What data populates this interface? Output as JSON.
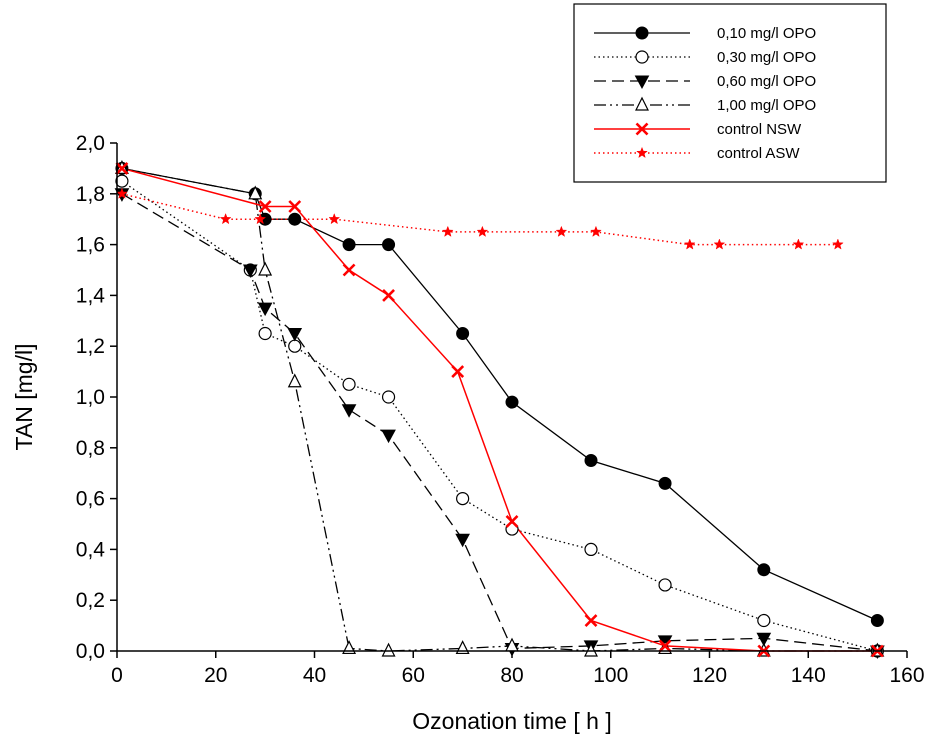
{
  "chart_data": {
    "type": "line",
    "title": "",
    "xlabel": "Ozonation time [ h ]",
    "ylabel": "TAN [mg/l]",
    "xlim": [
      0,
      160
    ],
    "ylim": [
      0,
      2.0
    ],
    "xticks": [
      0,
      20,
      40,
      60,
      80,
      100,
      120,
      140,
      160
    ],
    "xtick_labels": [
      "0",
      "20",
      "40",
      "60",
      "80",
      "100",
      "120",
      "140",
      "160"
    ],
    "yticks": [
      0,
      0.2,
      0.4,
      0.6,
      0.8,
      1.0,
      1.2,
      1.4,
      1.6,
      1.8,
      2.0
    ],
    "ytick_labels": [
      "0,0",
      "0,2",
      "0,4",
      "0,6",
      "0,8",
      "1,0",
      "1,2",
      "1,4",
      "1,6",
      "1,8",
      "2,0"
    ],
    "grid": false,
    "legend_position": "top-right",
    "series": [
      {
        "name": "0,10 mg/l OPO",
        "color": "#000000",
        "line_style": "solid",
        "marker": "filled-circle",
        "x": [
          1,
          28,
          30,
          36,
          47,
          55,
          70,
          80,
          96,
          111,
          131,
          154
        ],
        "y": [
          1.9,
          1.8,
          1.7,
          1.7,
          1.6,
          1.6,
          1.25,
          0.98,
          0.75,
          0.66,
          0.32,
          0.12
        ]
      },
      {
        "name": "0,30 mg/l OPO",
        "color": "#000000",
        "line_style": "dotted",
        "marker": "open-circle",
        "x": [
          1,
          27,
          30,
          36,
          47,
          55,
          70,
          80,
          96,
          111,
          131,
          154
        ],
        "y": [
          1.85,
          1.5,
          1.25,
          1.2,
          1.05,
          1.0,
          0.6,
          0.48,
          0.4,
          0.26,
          0.12,
          0.0
        ]
      },
      {
        "name": "0,60 mg/l OPO",
        "color": "#000000",
        "line_style": "dashed",
        "marker": "filled-triangle-down",
        "x": [
          1,
          27,
          30,
          36,
          47,
          55,
          70,
          80,
          96,
          111,
          131,
          154
        ],
        "y": [
          1.8,
          1.5,
          1.35,
          1.25,
          0.95,
          0.85,
          0.44,
          0.01,
          0.02,
          0.04,
          0.05,
          0.0
        ]
      },
      {
        "name": "1,00 mg/l OPO",
        "color": "#000000",
        "line_style": "dash-dot-dot",
        "marker": "open-triangle-up",
        "x": [
          1,
          28,
          30,
          36,
          47,
          55,
          70,
          80,
          96,
          111,
          131,
          154
        ],
        "y": [
          1.9,
          1.8,
          1.5,
          1.06,
          0.01,
          0.0,
          0.01,
          0.02,
          0.0,
          0.01,
          0.0,
          0.0
        ]
      },
      {
        "name": "control NSW",
        "color": "#ff0000",
        "line_style": "solid",
        "marker": "x",
        "x": [
          1,
          30,
          36,
          47,
          55,
          69,
          80,
          96,
          111,
          131,
          154
        ],
        "y": [
          1.9,
          1.75,
          1.75,
          1.5,
          1.4,
          1.1,
          0.51,
          0.12,
          0.02,
          0.0,
          0.0
        ]
      },
      {
        "name": "control ASW",
        "color": "#ff0000",
        "line_style": "dotted",
        "marker": "star",
        "x": [
          1,
          22,
          29,
          44,
          67,
          74,
          90,
          97,
          116,
          122,
          138,
          146
        ],
        "y": [
          1.8,
          1.7,
          1.7,
          1.7,
          1.65,
          1.65,
          1.65,
          1.65,
          1.6,
          1.6,
          1.6,
          1.6
        ]
      }
    ]
  }
}
